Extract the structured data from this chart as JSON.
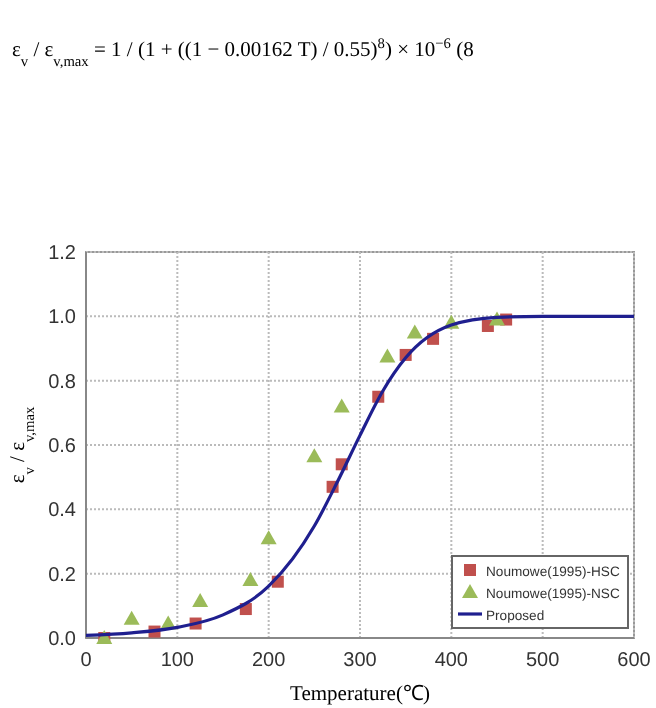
{
  "chart_data": {
    "type": "scatter",
    "annotations": [
      "ε$_{v}$ / ε$_{v,max}$ = 1 / (1 + ((1 − 0.00162 T) / 0.55)$^{8}$) × 10$^{−6}$     (8"
    ],
    "xlabel": "Temperature(℃)",
    "ylabel": "ε$_{v}$ / ε$_{v,max}$",
    "xlim": [
      0,
      600
    ],
    "xticks": [
      0,
      100,
      200,
      300,
      400,
      500,
      600
    ],
    "ylim": [
      0,
      1.2
    ],
    "yticks": [
      {
        "value": 0,
        "label": "0.0"
      },
      {
        "value": 0.2,
        "label": "0.2"
      },
      {
        "value": 0.4,
        "label": "0.4"
      },
      {
        "value": 0.6,
        "label": "0.6"
      },
      {
        "value": 0.8,
        "label": "0.8"
      },
      {
        "value": 1,
        "label": "1.0"
      },
      {
        "value": 1.2,
        "label": "1.2"
      }
    ],
    "grid": true,
    "legend": "bottom right",
    "series": [
      {
        "name": "Noumowe(1995)-HSC",
        "marker": "square",
        "color": "#c0504d",
        "x": [
          20,
          75,
          120,
          175,
          210,
          270,
          280,
          320,
          350,
          380,
          440,
          460
        ],
        "values": [
          0,
          0.02,
          0.045,
          0.09,
          0.175,
          0.47,
          0.54,
          0.75,
          0.88,
          0.93,
          0.97,
          0.99
        ]
      },
      {
        "name": "Noumowe(1995)-NSC",
        "marker": "triangle",
        "color": "#9bbb59",
        "x": [
          20,
          50,
          90,
          125,
          180,
          200,
          250,
          280,
          330,
          360,
          400,
          450
        ],
        "values": [
          0,
          0.06,
          0.045,
          0.115,
          0.18,
          0.31,
          0.565,
          0.72,
          0.875,
          0.95,
          0.98,
          0.99
        ]
      },
      {
        "name": "Proposed",
        "type": "line",
        "marker": "none",
        "color": "#1f1f8f",
        "x": [
          0,
          50,
          100,
          150,
          200,
          250,
          275,
          300,
          325,
          350,
          400,
          450,
          500,
          600
        ],
        "values": [
          0.008,
          0.016,
          0.033,
          0.072,
          0.161,
          0.348,
          0.484,
          0.63,
          0.768,
          0.871,
          0.973,
          0.997,
          1,
          1
        ]
      }
    ]
  }
}
